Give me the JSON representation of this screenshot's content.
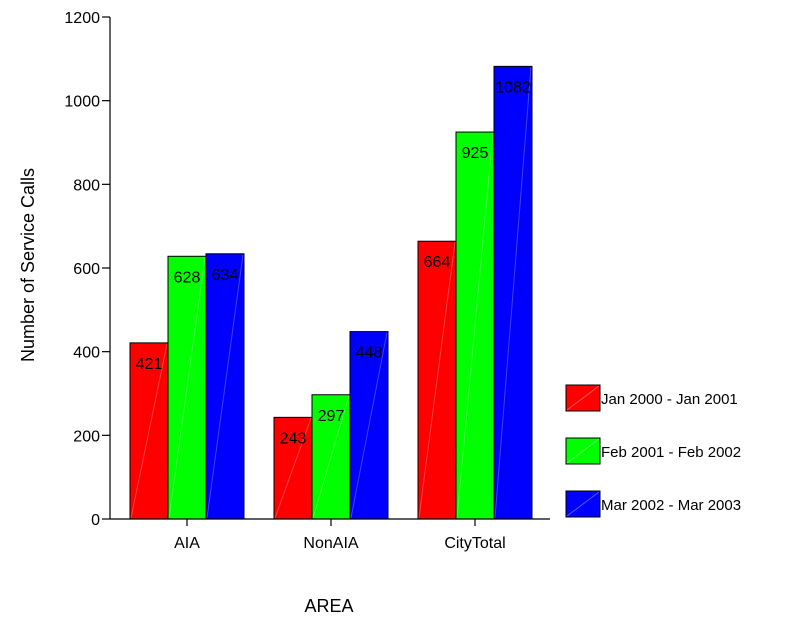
{
  "chart_data": {
    "type": "bar",
    "title": "",
    "xlabel": "AREA",
    "ylabel": "Number of Service Calls",
    "categories": [
      "AIA",
      "NonAIA",
      "CityTotal"
    ],
    "series": [
      {
        "name": "Jan 2000 - Jan 2001",
        "color": "#ff0000",
        "values": [
          421,
          243,
          664
        ]
      },
      {
        "name": "Feb 2001 - Feb 2002",
        "color": "#00ff00",
        "values": [
          628,
          297,
          925
        ]
      },
      {
        "name": "Mar 2002 - Mar 2003",
        "color": "#0000ff",
        "values": [
          634,
          448,
          1082
        ]
      }
    ],
    "ylim": [
      0,
      1200
    ],
    "yticks": [
      0,
      200,
      400,
      600,
      800,
      1000,
      1200
    ],
    "grid": false,
    "legend_position": "right",
    "data_labels": true
  }
}
